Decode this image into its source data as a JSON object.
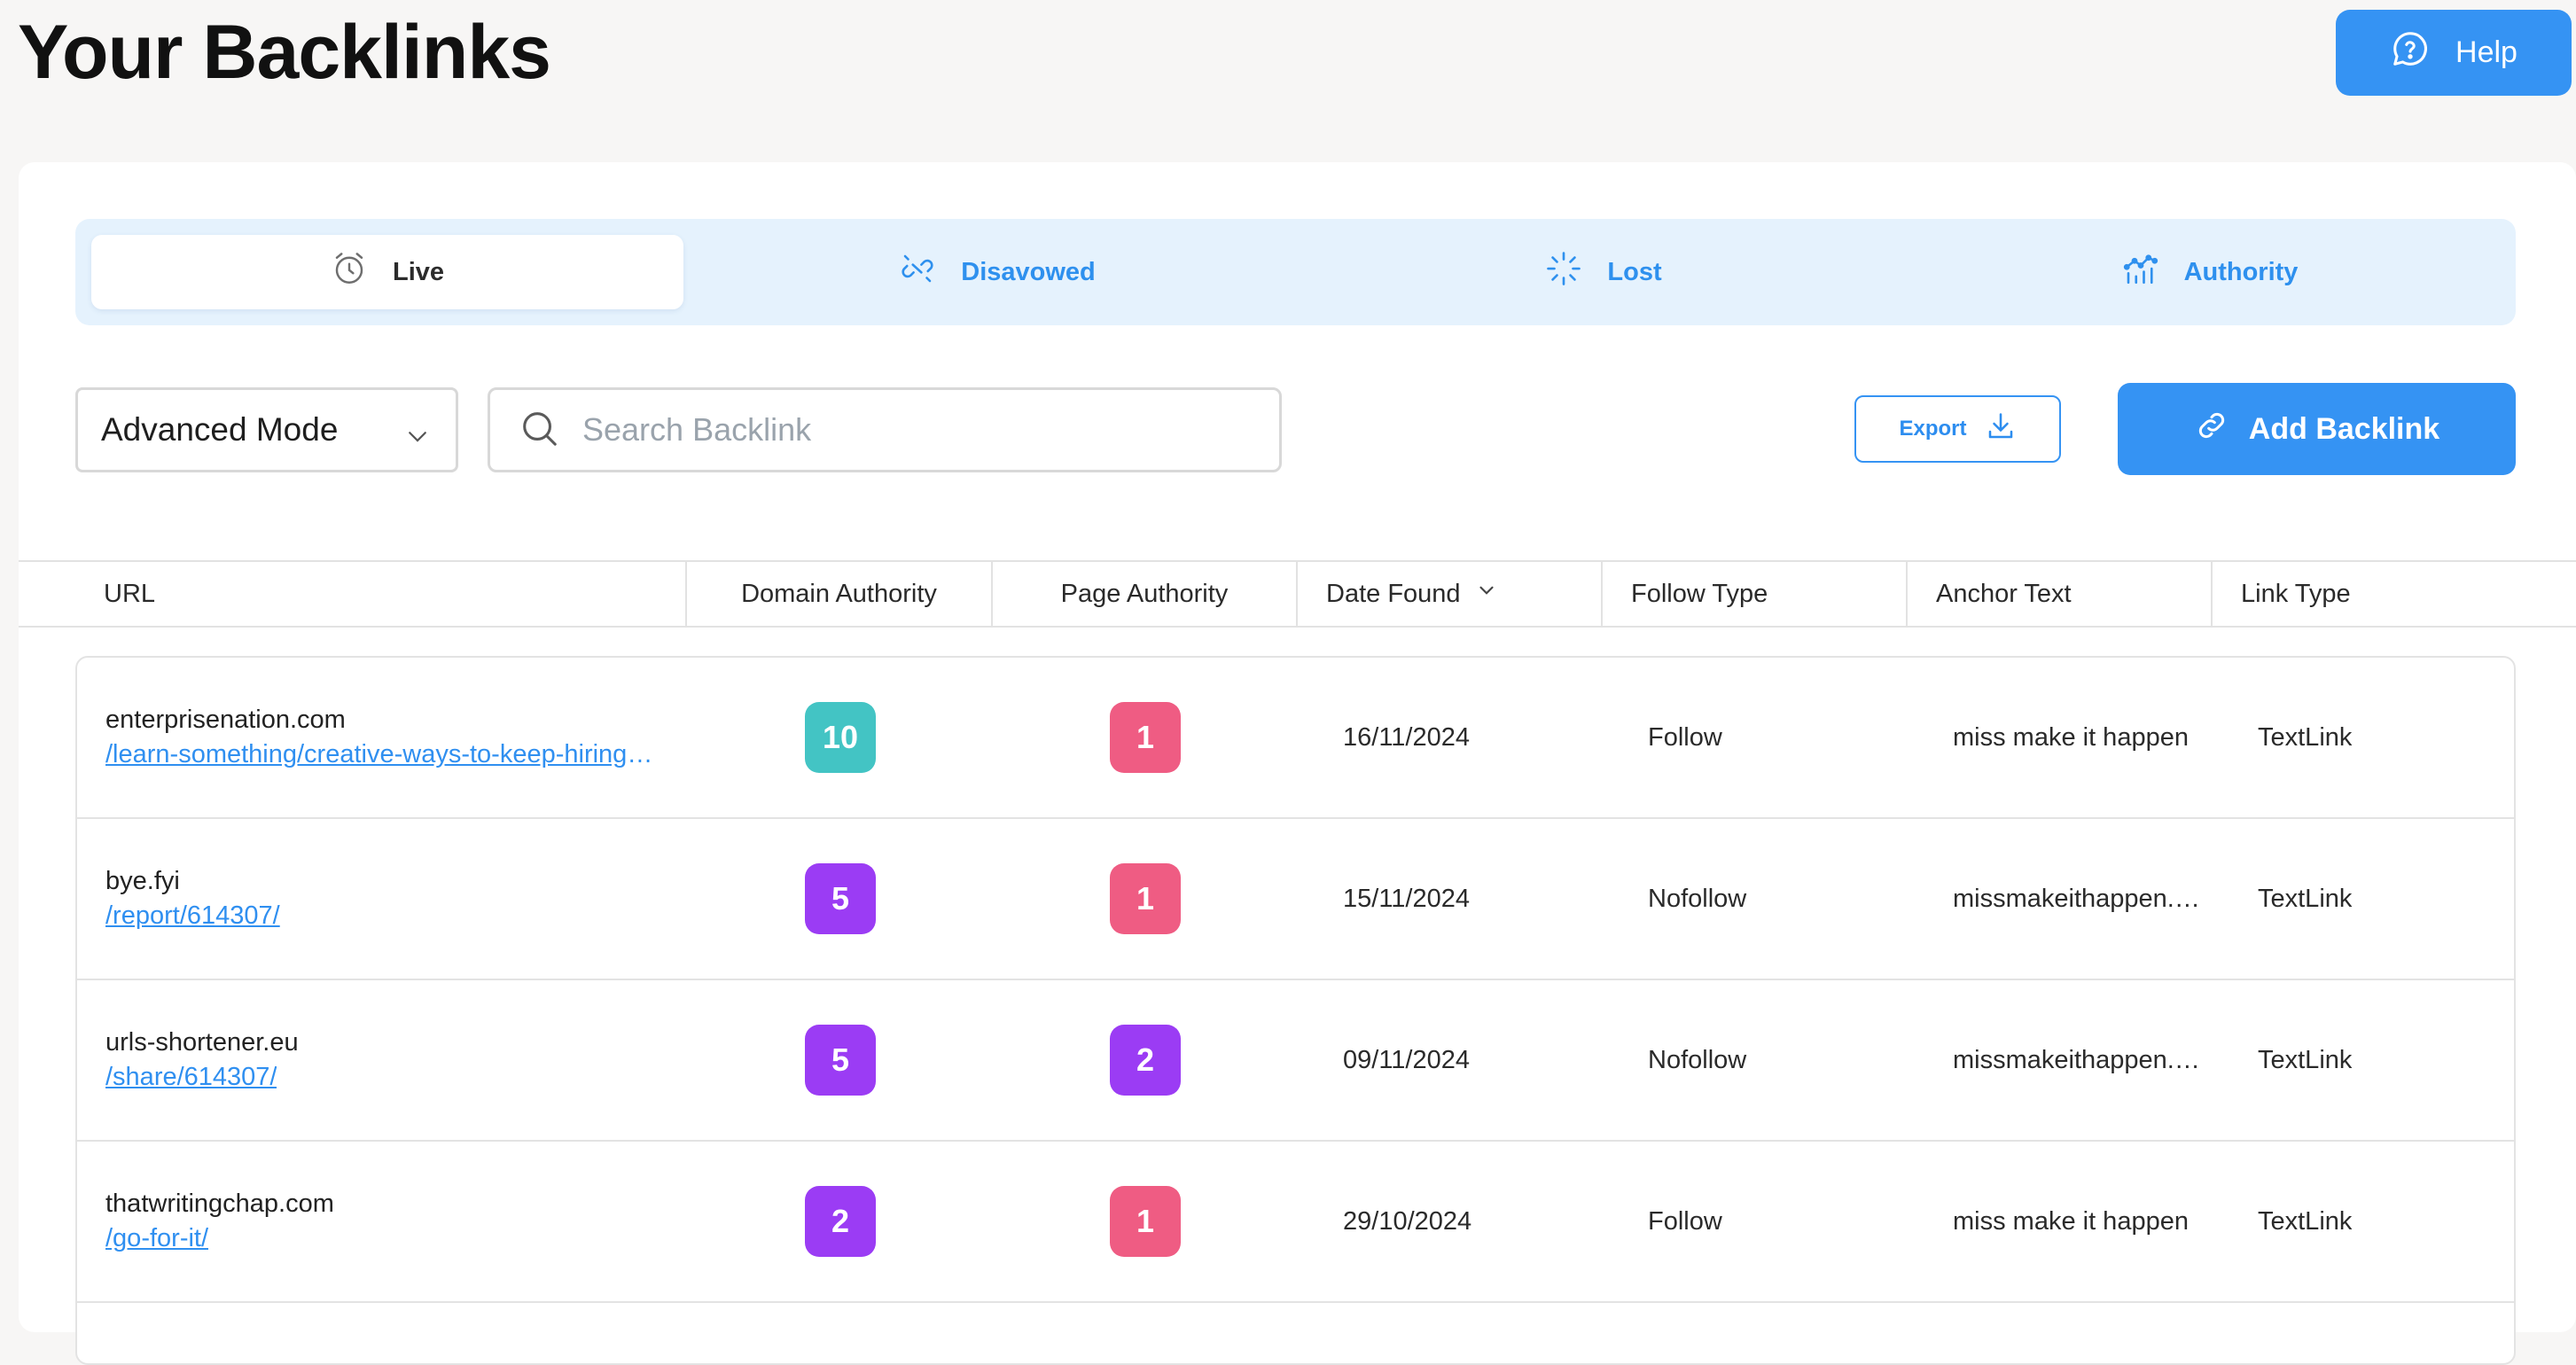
{
  "page_title": "Your Backlinks",
  "help_label": "Help",
  "tabs": [
    {
      "label": "Live",
      "icon": "alarm-clock-icon",
      "active": true
    },
    {
      "label": "Disavowed",
      "icon": "broken-link-icon",
      "active": false
    },
    {
      "label": "Lost",
      "icon": "loader-icon",
      "active": false
    },
    {
      "label": "Authority",
      "icon": "trend-chart-icon",
      "active": false
    }
  ],
  "toolbar": {
    "mode_selected": "Advanced Mode",
    "search_placeholder": "Search Backlink",
    "search_value": "",
    "export_label": "Export",
    "add_label": "Add Backlink"
  },
  "table": {
    "columns": [
      "URL",
      "Domain Authority",
      "Page Authority",
      "Date Found",
      "Follow Type",
      "Anchor Text",
      "Link Type"
    ],
    "sorted_column": "Date Found",
    "rows": [
      {
        "domain": "enterprisenation.com",
        "path": "/learn-something/creative-ways-to-keep-hiring-costs-down/",
        "da": "10",
        "da_color": "#43c4c4",
        "pa": "1",
        "pa_color": "#ef5c83",
        "date": "16/11/2024",
        "follow": "Follow",
        "anchor": "miss make it happen",
        "link_type": "TextLink"
      },
      {
        "domain": "bye.fyi",
        "path": "/report/614307/",
        "da": "5",
        "da_color": "#9b3cf4",
        "pa": "1",
        "pa_color": "#ef5c83",
        "date": "15/11/2024",
        "follow": "Nofollow",
        "anchor": "missmakeithappen.com",
        "link_type": "TextLink"
      },
      {
        "domain": "urls-shortener.eu",
        "path": "/share/614307/",
        "da": "5",
        "da_color": "#9b3cf4",
        "pa": "2",
        "pa_color": "#9b3cf4",
        "date": "09/11/2024",
        "follow": "Nofollow",
        "anchor": "missmakeithappen.com",
        "link_type": "TextLink"
      },
      {
        "domain": "thatwritingchap.com",
        "path": "/go-for-it/",
        "da": "2",
        "da_color": "#9b3cf4",
        "pa": "1",
        "pa_color": "#ef5c83",
        "date": "29/10/2024",
        "follow": "Follow",
        "anchor": "miss make it happen",
        "link_type": "TextLink"
      }
    ]
  }
}
